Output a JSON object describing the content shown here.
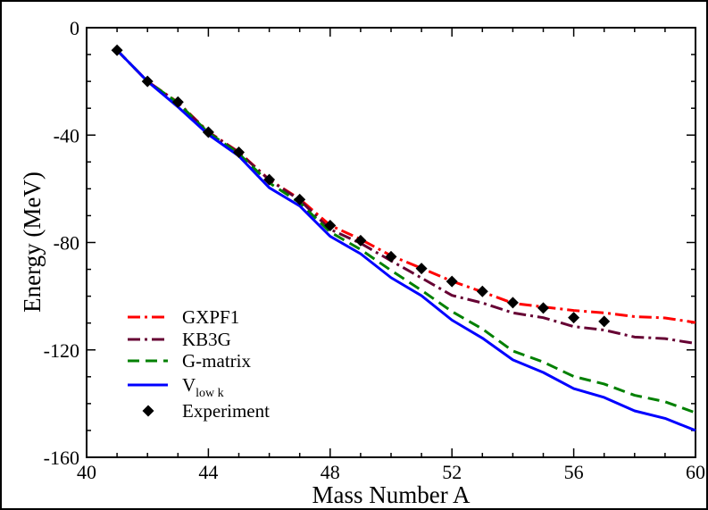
{
  "chart_data": {
    "type": "line",
    "xlabel": "Mass Number A",
    "ylabel": "Energy (MeV)",
    "xlim": [
      40,
      60
    ],
    "ylim": [
      -160,
      0
    ],
    "xticks": [
      40,
      44,
      48,
      52,
      56,
      60
    ],
    "yticks": [
      0,
      -40,
      -80,
      -120,
      -160
    ],
    "grid": false,
    "legend_position": "bottom-left",
    "series": [
      {
        "name": "GXPF1",
        "color": "#ff0000",
        "style": "dash-dot",
        "x": [
          41,
          42,
          43,
          44,
          45,
          46,
          47,
          48,
          49,
          50,
          51,
          52,
          53,
          54,
          55,
          56,
          57,
          58,
          59,
          60
        ],
        "y": [
          -8.4,
          -20.0,
          -27.8,
          -38.8,
          -46.3,
          -56.6,
          -63.8,
          -73.6,
          -78.8,
          -84.9,
          -89.6,
          -94.4,
          -98.4,
          -102.6,
          -104.0,
          -105.3,
          -106.2,
          -107.6,
          -108.1,
          -109.8
        ]
      },
      {
        "name": "KB3G",
        "color": "#660033",
        "style": "dash-dot",
        "x": [
          41,
          42,
          43,
          44,
          45,
          46,
          47,
          48,
          49,
          50,
          51,
          52,
          53,
          54,
          55,
          56,
          57,
          58,
          59,
          60
        ],
        "y": [
          -8.4,
          -20.0,
          -28.0,
          -38.9,
          -46.5,
          -56.7,
          -64.2,
          -75.1,
          -80.3,
          -86.8,
          -93.2,
          -99.7,
          -102.5,
          -106.2,
          -108.0,
          -111.3,
          -112.6,
          -115.2,
          -115.8,
          -117.6
        ]
      },
      {
        "name": "G-matrix",
        "color": "#008000",
        "style": "dashed",
        "x": [
          41,
          42,
          43,
          44,
          45,
          46,
          47,
          48,
          49,
          50,
          51,
          52,
          53,
          54,
          55,
          56,
          57,
          58,
          59,
          60
        ],
        "y": [
          -8.4,
          -20.0,
          -28.0,
          -39.1,
          -46.9,
          -57.8,
          -65.2,
          -76.1,
          -82.6,
          -90.4,
          -97.8,
          -105.7,
          -112.2,
          -120.4,
          -124.5,
          -129.9,
          -132.7,
          -136.9,
          -139.3,
          -143.4
        ]
      },
      {
        "name": "V",
        "name_sub": "low k",
        "color": "#0000ff",
        "style": "solid",
        "x": [
          41,
          42,
          43,
          44,
          45,
          46,
          47,
          48,
          49,
          50,
          51,
          52,
          53,
          54,
          55,
          56,
          57,
          58,
          59,
          60
        ],
        "y": [
          -8.4,
          -20.0,
          -29.5,
          -39.8,
          -47.8,
          -59.6,
          -66.4,
          -77.7,
          -84.2,
          -93.1,
          -99.8,
          -108.9,
          -115.6,
          -123.7,
          -128.4,
          -134.4,
          -137.7,
          -142.7,
          -145.5,
          -150.0
        ]
      },
      {
        "name": "Experiment",
        "color": "#000000",
        "style": "markers",
        "marker": "diamond",
        "x": [
          41,
          42,
          43,
          44,
          45,
          46,
          47,
          48,
          49,
          50,
          51,
          52,
          53,
          54,
          55,
          56,
          57
        ],
        "y": [
          -8.4,
          -20.0,
          -27.7,
          -38.9,
          -46.4,
          -56.6,
          -64.0,
          -73.7,
          -79.3,
          -85.3,
          -89.7,
          -94.5,
          -98.2,
          -102.4,
          -104.4,
          -108.0,
          -109.4
        ]
      }
    ]
  }
}
